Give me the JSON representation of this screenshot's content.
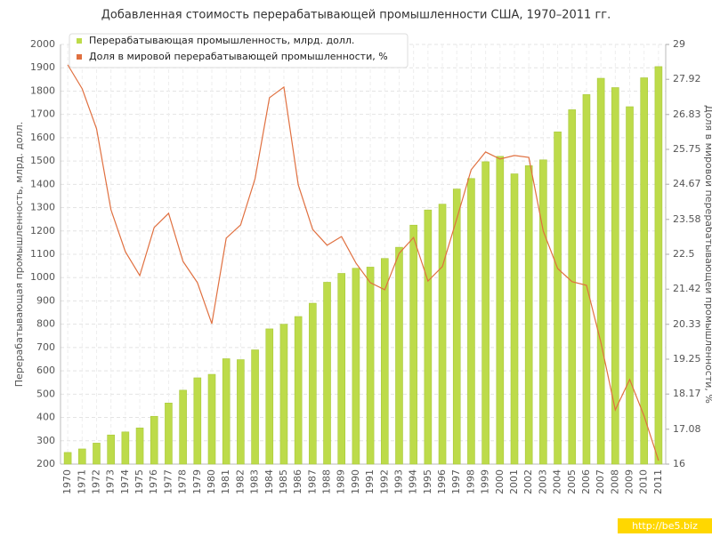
{
  "chart_data": {
    "type": "bar",
    "title": "Добавленная стоимость перерабатывающей промышленности США, 1970–2011 гг.",
    "ylabel": "Перерабатывающая промышленность, млрд. долл.",
    "y2label": "Доля в мировой перерабатывающей промышленности, %",
    "source": "http://be5.biz",
    "categories": [
      "1970",
      "1971",
      "1972",
      "1973",
      "1974",
      "1975",
      "1976",
      "1977",
      "1978",
      "1979",
      "1980",
      "1981",
      "1982",
      "1983",
      "1984",
      "1985",
      "1986",
      "1987",
      "1988",
      "1989",
      "1990",
      "1991",
      "1992",
      "1993",
      "1994",
      "1995",
      "1996",
      "1997",
      "1998",
      "1999",
      "2000",
      "2001",
      "2002",
      "2003",
      "2004",
      "2005",
      "2006",
      "2007",
      "2008",
      "2009",
      "2010",
      "2011"
    ],
    "series": [
      {
        "name": "Перерабатывающая промышленность, млрд. долл.",
        "type": "bar",
        "color": "#bddb4a",
        "values": [
          250,
          265,
          290,
          325,
          338,
          355,
          405,
          462,
          517,
          570,
          585,
          652,
          648,
          690,
          780,
          800,
          833,
          890,
          980,
          1018,
          1040,
          1045,
          1082,
          1130,
          1225,
          1290,
          1315,
          1380,
          1425,
          1497,
          1520,
          1445,
          1480,
          1505,
          1625,
          1720,
          1785,
          1855,
          1815,
          1733,
          1857,
          1905
        ]
      },
      {
        "name": "Доля в мировой перерабатывающей промышленности, %",
        "type": "line",
        "axis": "y2",
        "color": "#e07040",
        "values": [
          28.37,
          27.63,
          26.39,
          23.88,
          22.58,
          21.84,
          23.33,
          23.77,
          22.28,
          21.62,
          20.35,
          23.0,
          23.41,
          24.84,
          27.35,
          27.68,
          24.65,
          23.27,
          22.78,
          23.05,
          22.23,
          21.62,
          21.4,
          22.53,
          23.02,
          21.67,
          22.12,
          23.6,
          25.12,
          25.67,
          25.45,
          25.56,
          25.5,
          23.22,
          22.06,
          21.65,
          21.54,
          19.77,
          17.68,
          18.62,
          17.49,
          16.11
        ]
      }
    ],
    "ylim": [
      200,
      2000
    ],
    "yticks": [
      200,
      300,
      400,
      500,
      600,
      700,
      800,
      900,
      1000,
      1100,
      1200,
      1300,
      1400,
      1500,
      1600,
      1700,
      1800,
      1900,
      2000
    ],
    "y2lim": [
      16,
      29
    ],
    "y2ticks": [
      16,
      17.08,
      18.17,
      19.25,
      20.33,
      21.42,
      22.5,
      23.58,
      24.67,
      25.75,
      26.83,
      27.92,
      29
    ],
    "grid": true,
    "legend": "top-left"
  }
}
